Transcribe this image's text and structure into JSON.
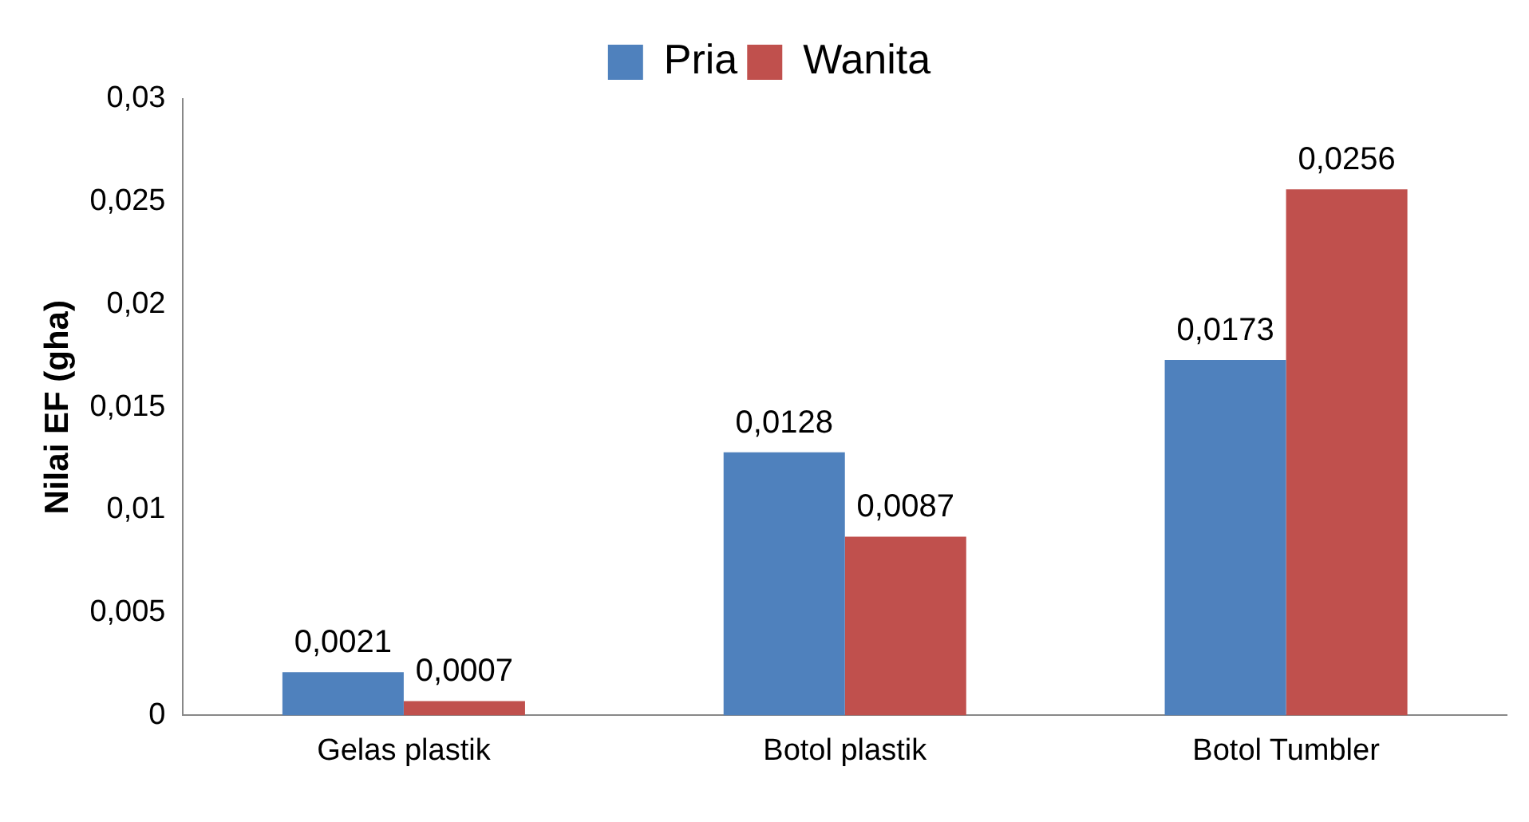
{
  "chart_data": {
    "type": "bar",
    "ylabel": "Nilai EF (gha)",
    "categories": [
      "Gelas plastik",
      "Botol plastik",
      "Botol Tumbler"
    ],
    "series": [
      {
        "name": "Pria",
        "color": "#4f81bd",
        "values": [
          0.0021,
          0.0128,
          0.0173
        ],
        "value_labels": [
          "0,0021",
          "0,0128",
          "0,0173"
        ]
      },
      {
        "name": "Wanita",
        "color": "#c0504d",
        "values": [
          0.0007,
          0.0087,
          0.0256
        ],
        "value_labels": [
          "0,0007",
          "0,0087",
          "0,0256"
        ]
      }
    ],
    "ylim": [
      0,
      0.03
    ],
    "yticks": [
      {
        "value": 0,
        "label": "0"
      },
      {
        "value": 0.005,
        "label": "0,005"
      },
      {
        "value": 0.01,
        "label": "0,01"
      },
      {
        "value": 0.015,
        "label": "0,015"
      },
      {
        "value": 0.02,
        "label": "0,02"
      },
      {
        "value": 0.025,
        "label": "0,025"
      },
      {
        "value": 0.03,
        "label": "0,03"
      }
    ],
    "grid": false,
    "legend": "top"
  }
}
